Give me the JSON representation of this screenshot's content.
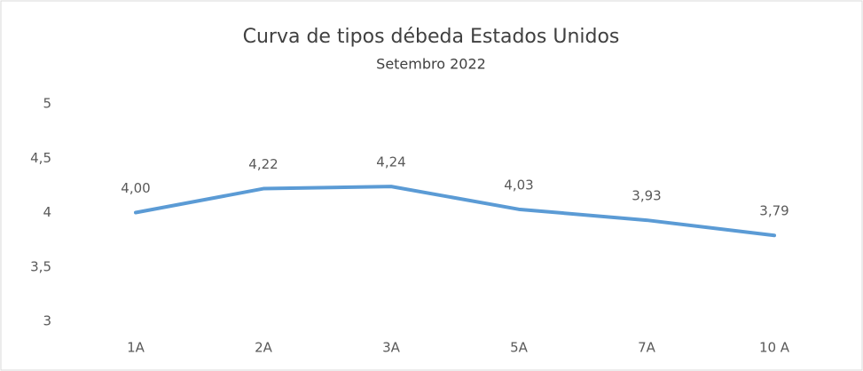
{
  "chart_data": {
    "type": "line",
    "title": "Curva de tipos débeda Estados Unidos",
    "subtitle": "Setembro 2022",
    "categories": [
      "1A",
      "2A",
      "3A",
      "5A",
      "7A",
      "10 A"
    ],
    "series": [
      {
        "name": "Estados Unidos",
        "color": "#5b9bd5",
        "values": [
          4.0,
          4.22,
          4.24,
          4.03,
          3.93,
          3.79
        ],
        "value_labels": [
          "4,00",
          "4,22",
          "4,24",
          "4,03",
          "3,93",
          "3,79"
        ]
      }
    ],
    "ylim": [
      3,
      5
    ],
    "yticks": [
      3,
      {
        "value": 3.5,
        "label": "3,5"
      },
      4,
      {
        "value": 4.5,
        "label": "4,5"
      },
      5
    ],
    "grid": false,
    "legend": false
  }
}
